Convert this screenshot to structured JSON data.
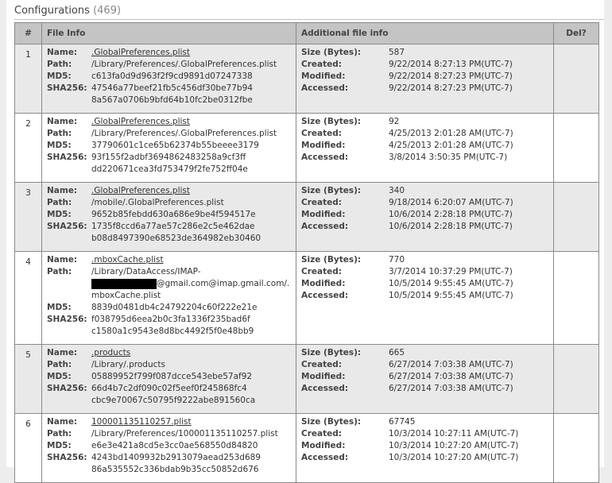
{
  "header": {
    "title": "Configurations",
    "count": "(469)"
  },
  "columns": {
    "num": "#",
    "file_info": "File Info",
    "additional": "Additional file info",
    "del": "Del?"
  },
  "labels": {
    "name": "Name:",
    "path": "Path:",
    "md5": "MD5:",
    "sha256": "SHA256:",
    "size": "Size (Bytes):",
    "created": "Created:",
    "modified": "Modified:",
    "accessed": "Accessed:"
  },
  "rows": [
    {
      "num": "1",
      "name": ".GlobalPreferences.plist",
      "path": "/Library/Preferences/.GlobalPreferences.plist",
      "md5": "c613fa0d9d963f2f9cd9891d07247338",
      "sha256_1": "47546a77beef21fb5c456df30be77b94",
      "sha256_2": "8a567a0706b9bfd64b10fc2be0312fbe",
      "size": "587",
      "created": "9/22/2014 8:27:13 PM(UTC-7)",
      "modified": "9/22/2014 8:27:23 PM(UTC-7)",
      "accessed": "9/22/2014 8:27:23 PM(UTC-7)"
    },
    {
      "num": "2",
      "name": ".GlobalPreferences.plist",
      "path": "/Library/Preferences/.GlobalPreferences.plist",
      "md5": "37790601c1ce65b62374b55beeee3179",
      "sha256_1": "93f155f2adbf3694862483258a9cf3ff",
      "sha256_2": "dd220671cea3fd753479f2fe752ff04e",
      "size": "92",
      "created": "4/25/2013 2:01:28 AM(UTC-7)",
      "modified": "4/25/2013 2:01:28 AM(UTC-7)",
      "accessed": "3/8/2014 3:50:35 PM(UTC-7)"
    },
    {
      "num": "3",
      "name": ".GlobalPreferences.plist",
      "path": "/mobile/.GlobalPreferences.plist",
      "md5": "9652b85febdd630a686e9be4f594517e",
      "sha256_1": "1735f8ccd6a77ae57c286e2c5e462dae",
      "sha256_2": "b08d8497390e68523de364982eb30460",
      "size": "340",
      "created": "9/18/2014 6:20:07 AM(UTC-7)",
      "modified": "10/6/2014 2:28:18 PM(UTC-7)",
      "accessed": "10/6/2014 2:28:18 PM(UTC-7)"
    },
    {
      "num": "4",
      "name": ".mboxCache.plist",
      "path": "/Library/DataAccess/IMAP-",
      "path_2": "@gmail.com@imap.gmail.com/.",
      "path_3": "mboxCache.plist",
      "redacted": true,
      "md5": "8839d0481db4c24792204c60f222e21e",
      "sha256_1": "f038795d6eea2b0c3fa1336f235bad6f",
      "sha256_2": "c1580a1c9543e8d8bc4492f5f0e48bb9",
      "size": "770",
      "created": "3/7/2014 10:37:29 PM(UTC-7)",
      "modified": "10/5/2014 9:55:45 AM(UTC-7)",
      "accessed": "10/5/2014 9:55:45 AM(UTC-7)"
    },
    {
      "num": "5",
      "name": ".products",
      "path": "/Library/.products",
      "md5": "05889952f799f087dcce543ebe57af92",
      "sha256_1": "66d4b7c2df090c02f5eef0f245868fc4",
      "sha256_2": "cbc9e70067c50795f9222abe891560ca",
      "size": "665",
      "created": "6/27/2014 7:03:38 AM(UTC-7)",
      "modified": "6/27/2014 7:03:38 AM(UTC-7)",
      "accessed": "6/27/2014 7:03:38 AM(UTC-7)"
    },
    {
      "num": "6",
      "name": "100001135110257.plist",
      "path": "/Library/Preferences/100001135110257.plist",
      "md5": "e6e3e421a8cd5e3cc0ae568550d84820",
      "sha256_1": "4243bd1409932b2913079aead253d689",
      "sha256_2": "86a535552c336bdab9b35cc50852d676",
      "size": "67745",
      "created": "10/3/2014 10:27:11 AM(UTC-7)",
      "modified": "10/3/2014 10:27:20 AM(UTC-7)",
      "accessed": "10/3/2014 10:27:20 AM(UTC-7)"
    }
  ]
}
